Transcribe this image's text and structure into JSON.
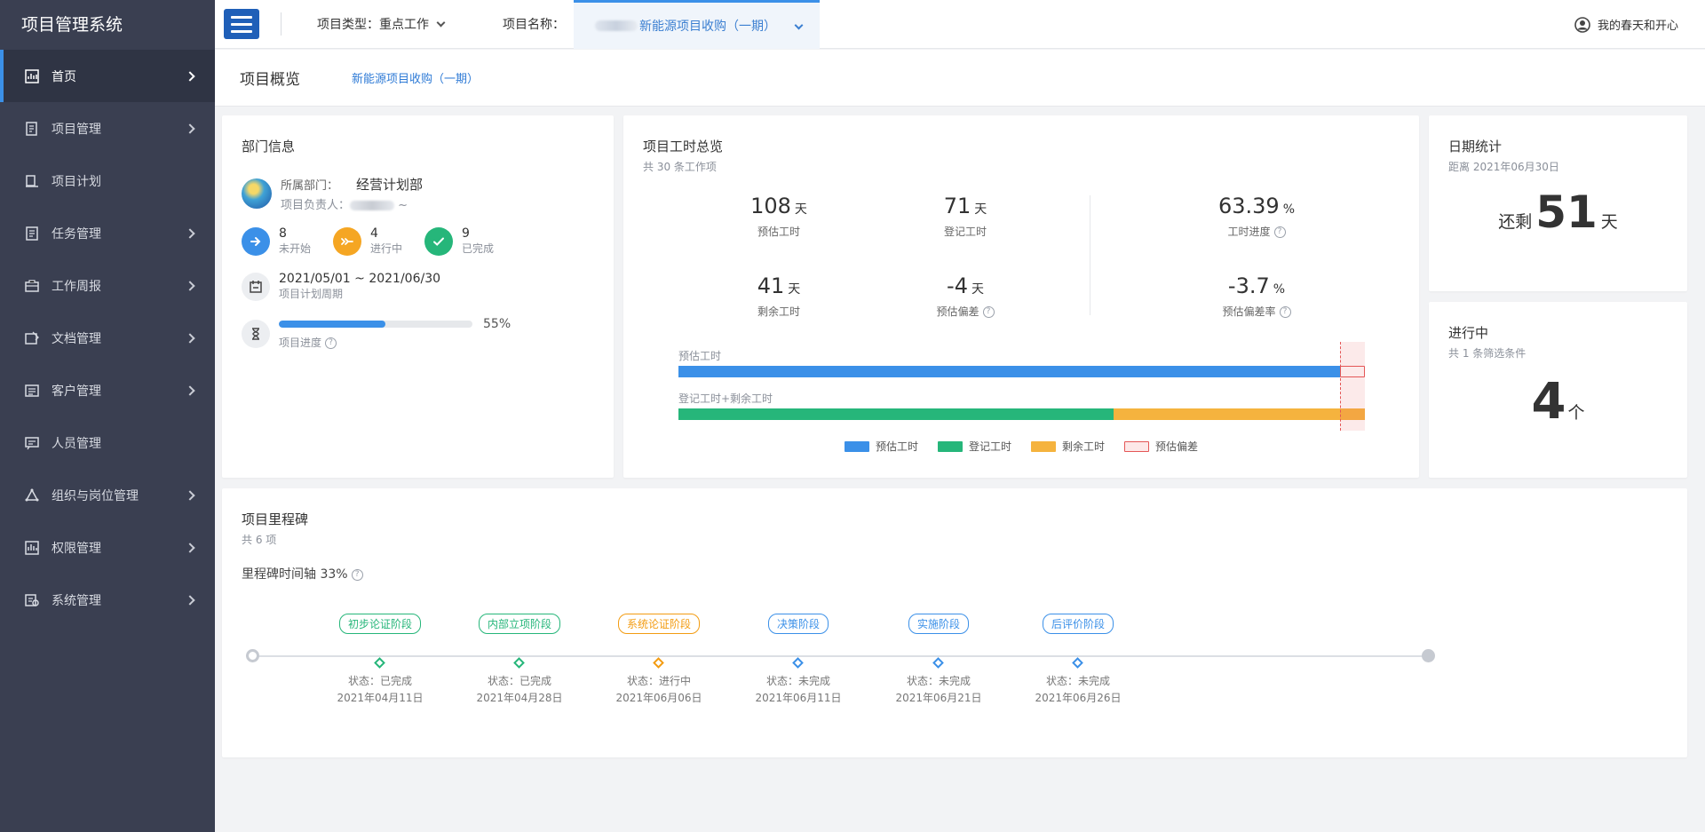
{
  "sidebar": {
    "brand": "项目管理系统",
    "items": [
      {
        "label": "首页",
        "icon": "dashboard-icon",
        "active": true,
        "has_children": true
      },
      {
        "label": "项目管理",
        "icon": "project-icon",
        "has_children": true
      },
      {
        "label": "项目计划",
        "icon": "plan-icon",
        "has_children": false
      },
      {
        "label": "任务管理",
        "icon": "task-icon",
        "has_children": true
      },
      {
        "label": "工作周报",
        "icon": "report-icon",
        "has_children": true
      },
      {
        "label": "文档管理",
        "icon": "document-icon",
        "has_children": true
      },
      {
        "label": "客户管理",
        "icon": "customer-icon",
        "has_children": true
      },
      {
        "label": "人员管理",
        "icon": "person-icon",
        "has_children": false
      },
      {
        "label": "组织与岗位管理",
        "icon": "org-icon",
        "has_children": true
      },
      {
        "label": "权限管理",
        "icon": "permission-icon",
        "has_children": true
      },
      {
        "label": "系统管理",
        "icon": "settings-icon",
        "has_children": true
      }
    ]
  },
  "topbar": {
    "project_type_label": "项目类型：",
    "project_type_value": "重点工作",
    "project_name_label": "项目名称：",
    "project_name_value": "新能源项目收购（一期）",
    "user_name": "我的春天和开心"
  },
  "breadcrumb": {
    "title": "项目概览",
    "project_link": "新能源项目收购（一期）"
  },
  "dept": {
    "title": "部门信息",
    "dept_label": "所属部门：",
    "dept_value": "经营计划部",
    "owner_label": "项目负责人：",
    "owner_suffix": "~",
    "not_started_count": "8",
    "not_started_label": "未开始",
    "in_progress_count": "4",
    "in_progress_label": "进行中",
    "done_count": "9",
    "done_label": "已完成",
    "period": "2021/05/01 ~ 2021/06/30",
    "period_label": "项目计划周期",
    "progress_pct": "55%",
    "progress_value": 0.55,
    "progress_label": "项目进度"
  },
  "hours": {
    "title": "项目工时总览",
    "subtitle": "共 30 条工作项",
    "unit_day": "天",
    "unit_pct": "%",
    "estimated": "108",
    "estimated_label": "预估工时",
    "logged": "71",
    "logged_label": "登记工时",
    "progress": "63.39",
    "progress_label": "工时进度",
    "remaining": "41",
    "remaining_label": "剩余工时",
    "deviation": "-4",
    "deviation_label": "预估偏差",
    "deviation_rate": "-3.7",
    "deviation_rate_label": "预估偏差率",
    "bar1_label": "预估工时",
    "bar2_label": "登记工时+剩余工时",
    "bar_values": {
      "estimated": 108,
      "logged": 71,
      "remaining": 41,
      "deviation": 4
    },
    "legend": [
      "预估工时",
      "登记工时",
      "剩余工时",
      "预估偏差"
    ],
    "colors": {
      "estimated": "#3b90e8",
      "logged": "#26b67a",
      "remaining": "#f5b33e",
      "deviation": "#e45656"
    }
  },
  "date": {
    "title": "日期统计",
    "subtitle": "距离 2021年06月30日",
    "prefix": "还剩",
    "days": "51",
    "suffix": "天"
  },
  "inprog": {
    "title": "进行中",
    "subtitle": "共 1 条筛选条件",
    "count": "4",
    "suffix": "个"
  },
  "milestone": {
    "title": "项目里程碑",
    "subtitle": "共 6 项",
    "timeline_label": "里程碑时间轴 33%",
    "items": [
      {
        "name": "初步论证阶段",
        "status": "状态：已完成",
        "date": "2021年04月11日",
        "color": "#26b67a"
      },
      {
        "name": "内部立项阶段",
        "status": "状态：已完成",
        "date": "2021年04月28日",
        "color": "#26b67a"
      },
      {
        "name": "系统论证阶段",
        "status": "状态：进行中",
        "date": "2021年06月06日",
        "color": "#f39c12"
      },
      {
        "name": "决策阶段",
        "status": "状态：未完成",
        "date": "2021年06月11日",
        "color": "#3b90e8"
      },
      {
        "name": "实施阶段",
        "status": "状态：未完成",
        "date": "2021年06月21日",
        "color": "#3b90e8"
      },
      {
        "name": "后评价阶段",
        "status": "状态：未完成",
        "date": "2021年06月26日",
        "color": "#3b90e8"
      }
    ]
  }
}
